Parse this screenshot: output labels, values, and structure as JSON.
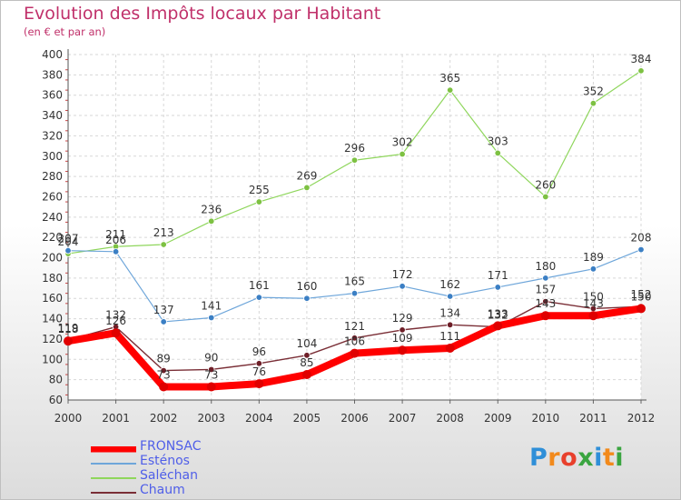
{
  "title": "Evolution des Impôts locaux par Habitant",
  "subtitle": "(en € et par an)",
  "brand": {
    "text": "Proxiti",
    "letters": [
      "P",
      "r",
      "o",
      "x",
      "i",
      "t",
      "i"
    ],
    "colors": [
      "#2f8fd8",
      "#f28a1c",
      "#e8402c",
      "#3aa540",
      "#2f8fd8",
      "#f28a1c",
      "#3aa540"
    ]
  },
  "chart_data": {
    "type": "line",
    "title": "Evolution des Impôts locaux par Habitant",
    "subtitle": "(en € et par an)",
    "xlabel": "",
    "ylabel": "",
    "ylim": [
      60,
      400
    ],
    "yticks": [
      60,
      80,
      100,
      120,
      140,
      160,
      180,
      200,
      220,
      240,
      260,
      280,
      300,
      320,
      340,
      360,
      380,
      400
    ],
    "grid": true,
    "legend": "bottom-left",
    "x": [
      "2000",
      "2001",
      "2002",
      "2003",
      "2004",
      "2005",
      "2006",
      "2007",
      "2008",
      "2009",
      "2010",
      "2011",
      "2012"
    ],
    "series": [
      {
        "name": "Saléchan",
        "color": "#8fd65c",
        "marker": "#7dc142",
        "line_width": 1.2,
        "values": [
          204,
          211,
          213,
          236,
          255,
          269,
          296,
          302,
          365,
          303,
          260,
          352,
          384
        ],
        "labels": [
          "204",
          "211",
          "213",
          "236",
          "255",
          "269",
          "296",
          "302",
          "365",
          "303",
          "260",
          "352",
          "384"
        ]
      },
      {
        "name": "Esténos",
        "color": "#6ea6da",
        "marker": "#3b7fc4",
        "line_width": 1.2,
        "values": [
          207,
          206,
          137,
          141,
          161,
          160,
          165,
          172,
          162,
          171,
          180,
          189,
          208
        ],
        "labels": [
          "207",
          "206",
          "137",
          "141",
          "161",
          "160",
          "165",
          "172",
          "162",
          "171",
          "180",
          "189",
          "208"
        ]
      },
      {
        "name": "Chaum",
        "color": "#7a2e36",
        "marker": "#6e1f28",
        "line_width": 1.4,
        "values": [
          119,
          132,
          89,
          90,
          96,
          104,
          121,
          129,
          134,
          132,
          157,
          150,
          152
        ],
        "labels": [
          "119",
          "132",
          "89",
          "90",
          "96",
          "104",
          "121",
          "129",
          "134",
          "132",
          "157",
          "150",
          "152"
        ]
      },
      {
        "name": "FRONSAC",
        "color": "#ff0000",
        "marker": "#e00000",
        "line_width": 8,
        "values": [
          118,
          126,
          73,
          73,
          76,
          85,
          106,
          109,
          111,
          133,
          143,
          143,
          150
        ],
        "labels": [
          "118",
          "126",
          "73",
          "73",
          "76",
          "85",
          "106",
          "109",
          "111",
          "133",
          "143",
          "143",
          "150"
        ]
      }
    ],
    "legend_order": [
      "FRONSAC",
      "Esténos",
      "Saléchan",
      "Chaum"
    ]
  }
}
